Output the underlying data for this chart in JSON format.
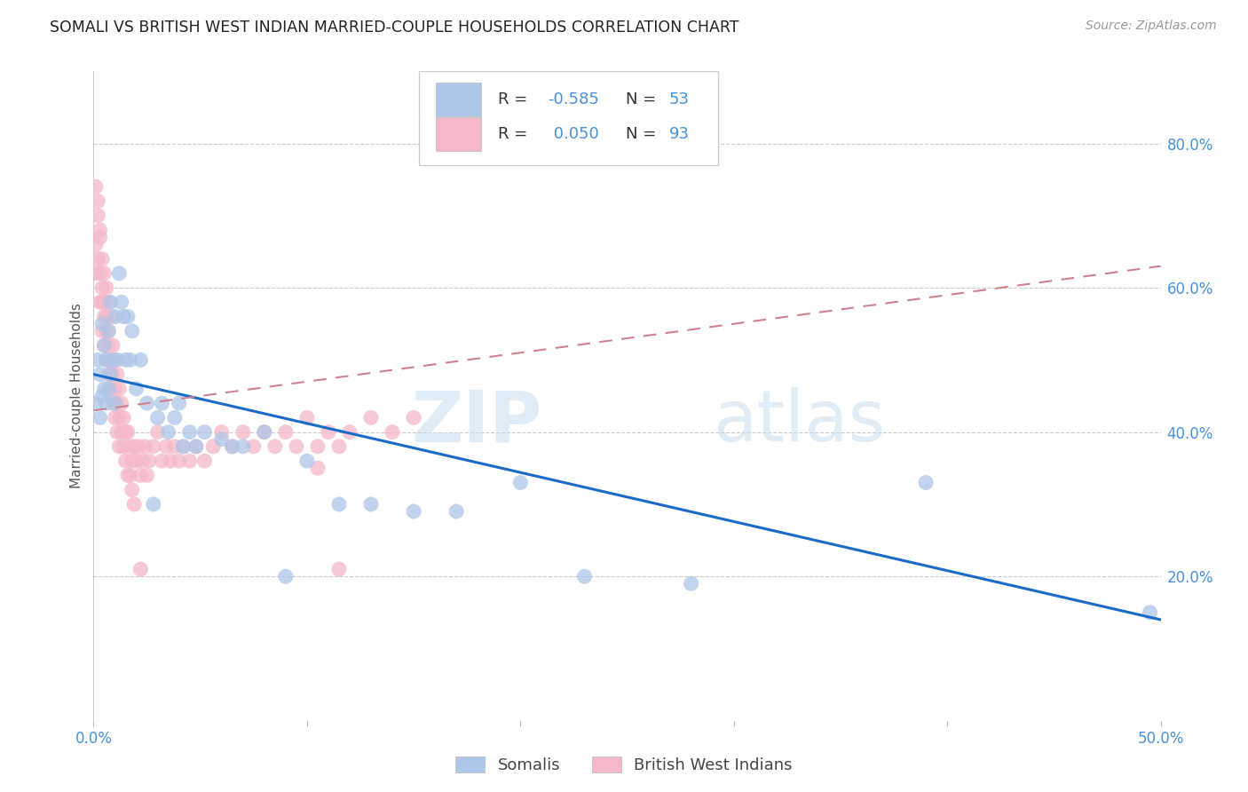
{
  "title": "SOMALI VS BRITISH WEST INDIAN MARRIED-COUPLE HOUSEHOLDS CORRELATION CHART",
  "source": "Source: ZipAtlas.com",
  "xlabel_somali": "Somalis",
  "xlabel_bwi": "British West Indians",
  "ylabel": "Married-couple Households",
  "xlim": [
    0.0,
    0.5
  ],
  "ylim": [
    0.0,
    0.9
  ],
  "somali_R": -0.585,
  "somali_N": 53,
  "bwi_R": 0.05,
  "bwi_N": 93,
  "somali_color": "#aec6e8",
  "somali_line_color": "#1a6ac7",
  "bwi_color": "#f5b8c8",
  "bwi_line_color": "#d08090",
  "watermark_zip": "ZIP",
  "watermark_atlas": "atlas",
  "somali_x": [
    0.001,
    0.002,
    0.003,
    0.003,
    0.004,
    0.004,
    0.005,
    0.005,
    0.006,
    0.006,
    0.007,
    0.007,
    0.008,
    0.008,
    0.009,
    0.01,
    0.01,
    0.011,
    0.012,
    0.013,
    0.014,
    0.015,
    0.016,
    0.017,
    0.018,
    0.02,
    0.022,
    0.025,
    0.028,
    0.03,
    0.032,
    0.035,
    0.038,
    0.04,
    0.042,
    0.045,
    0.048,
    0.052,
    0.06,
    0.065,
    0.07,
    0.08,
    0.09,
    0.1,
    0.115,
    0.13,
    0.15,
    0.17,
    0.2,
    0.23,
    0.28,
    0.39,
    0.495
  ],
  "somali_y": [
    0.44,
    0.5,
    0.48,
    0.42,
    0.55,
    0.45,
    0.52,
    0.46,
    0.5,
    0.44,
    0.54,
    0.46,
    0.58,
    0.48,
    0.5,
    0.56,
    0.44,
    0.5,
    0.62,
    0.58,
    0.56,
    0.5,
    0.56,
    0.5,
    0.54,
    0.46,
    0.5,
    0.44,
    0.3,
    0.42,
    0.44,
    0.4,
    0.42,
    0.44,
    0.38,
    0.4,
    0.38,
    0.4,
    0.39,
    0.38,
    0.38,
    0.4,
    0.2,
    0.36,
    0.3,
    0.3,
    0.29,
    0.29,
    0.33,
    0.2,
    0.19,
    0.33,
    0.15
  ],
  "bwi_x": [
    0.001,
    0.001,
    0.001,
    0.002,
    0.002,
    0.002,
    0.003,
    0.003,
    0.003,
    0.003,
    0.004,
    0.004,
    0.004,
    0.004,
    0.005,
    0.005,
    0.005,
    0.005,
    0.006,
    0.006,
    0.006,
    0.006,
    0.007,
    0.007,
    0.007,
    0.007,
    0.008,
    0.008,
    0.008,
    0.009,
    0.009,
    0.009,
    0.01,
    0.01,
    0.01,
    0.011,
    0.011,
    0.011,
    0.012,
    0.012,
    0.012,
    0.013,
    0.013,
    0.014,
    0.014,
    0.015,
    0.015,
    0.016,
    0.016,
    0.017,
    0.017,
    0.018,
    0.018,
    0.019,
    0.019,
    0.02,
    0.021,
    0.022,
    0.023,
    0.024,
    0.025,
    0.026,
    0.028,
    0.03,
    0.032,
    0.034,
    0.036,
    0.038,
    0.04,
    0.042,
    0.045,
    0.048,
    0.052,
    0.056,
    0.06,
    0.065,
    0.07,
    0.075,
    0.08,
    0.085,
    0.09,
    0.095,
    0.1,
    0.105,
    0.11,
    0.115,
    0.12,
    0.13,
    0.14,
    0.15,
    0.022,
    0.105,
    0.115
  ],
  "bwi_y": [
    0.74,
    0.66,
    0.62,
    0.7,
    0.64,
    0.72,
    0.67,
    0.58,
    0.62,
    0.68,
    0.64,
    0.58,
    0.54,
    0.6,
    0.62,
    0.56,
    0.52,
    0.58,
    0.6,
    0.54,
    0.5,
    0.56,
    0.58,
    0.52,
    0.48,
    0.54,
    0.56,
    0.5,
    0.46,
    0.52,
    0.48,
    0.44,
    0.5,
    0.46,
    0.42,
    0.48,
    0.44,
    0.4,
    0.46,
    0.42,
    0.38,
    0.44,
    0.4,
    0.42,
    0.38,
    0.4,
    0.36,
    0.4,
    0.34,
    0.38,
    0.34,
    0.36,
    0.32,
    0.38,
    0.3,
    0.36,
    0.38,
    0.34,
    0.36,
    0.38,
    0.34,
    0.36,
    0.38,
    0.4,
    0.36,
    0.38,
    0.36,
    0.38,
    0.36,
    0.38,
    0.36,
    0.38,
    0.36,
    0.38,
    0.4,
    0.38,
    0.4,
    0.38,
    0.4,
    0.38,
    0.4,
    0.38,
    0.42,
    0.38,
    0.4,
    0.38,
    0.4,
    0.42,
    0.4,
    0.42,
    0.21,
    0.35,
    0.21
  ]
}
